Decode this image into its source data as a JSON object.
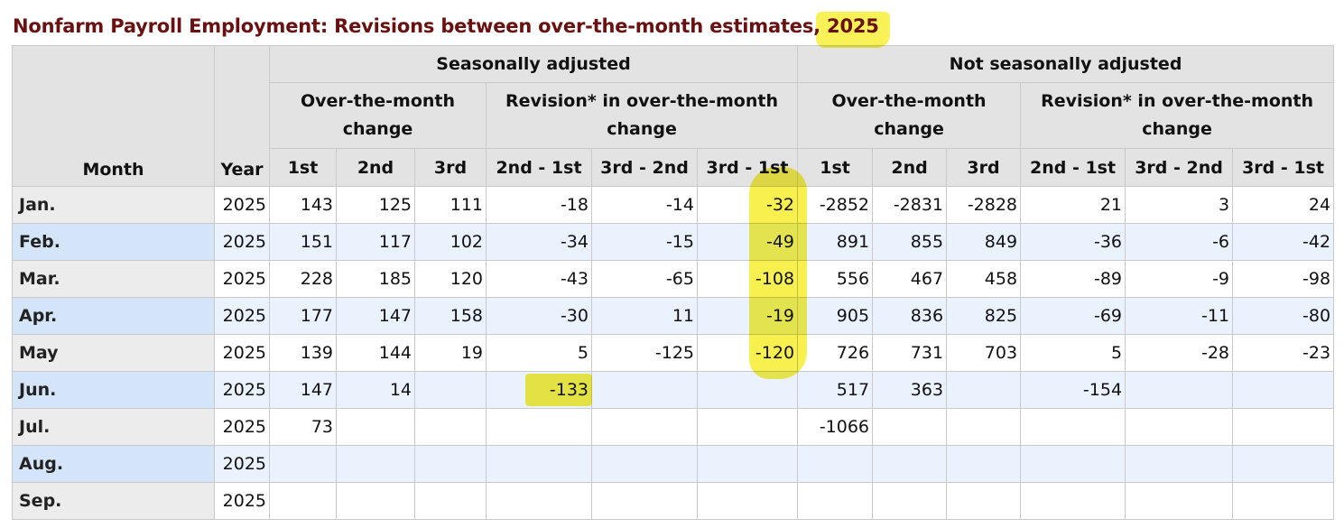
{
  "title_main": "Nonfarm Payroll Employment: Revisions between over-the-month estimates",
  "title_sep": ", ",
  "title_year": "2025",
  "headers": {
    "month": "Month",
    "year": "Year",
    "sa": "Seasonally adjusted",
    "nsa": "Not seasonally adjusted",
    "otm": "Over-the-month change",
    "rev": "Revision* in over-the-month change",
    "c1": "1st",
    "c2": "2nd",
    "c3": "3rd",
    "r21": "2nd - 1st",
    "r32": "3rd - 2nd",
    "r31": "3rd - 1st"
  },
  "highlight_color": "#f7ef3a",
  "rows": [
    {
      "month": "Jan.",
      "year": "2025",
      "sa": [
        "143",
        "125",
        "111",
        "-18",
        "-14",
        "-32"
      ],
      "nsa": [
        "-2852",
        "-2831",
        "-2828",
        "21",
        "3",
        "24"
      ]
    },
    {
      "month": "Feb.",
      "year": "2025",
      "sa": [
        "151",
        "117",
        "102",
        "-34",
        "-15",
        "-49"
      ],
      "nsa": [
        "891",
        "855",
        "849",
        "-36",
        "-6",
        "-42"
      ]
    },
    {
      "month": "Mar.",
      "year": "2025",
      "sa": [
        "228",
        "185",
        "120",
        "-43",
        "-65",
        "-108"
      ],
      "nsa": [
        "556",
        "467",
        "458",
        "-89",
        "-9",
        "-98"
      ]
    },
    {
      "month": "Apr.",
      "year": "2025",
      "sa": [
        "177",
        "147",
        "158",
        "-30",
        "11",
        "-19"
      ],
      "nsa": [
        "905",
        "836",
        "825",
        "-69",
        "-11",
        "-80"
      ]
    },
    {
      "month": "May",
      "year": "2025",
      "sa": [
        "139",
        "144",
        "19",
        "5",
        "-125",
        "-120"
      ],
      "nsa": [
        "726",
        "731",
        "703",
        "5",
        "-28",
        "-23"
      ]
    },
    {
      "month": "Jun.",
      "year": "2025",
      "sa": [
        "147",
        "14",
        "",
        "-133",
        "",
        ""
      ],
      "nsa": [
        "517",
        "363",
        "",
        "-154",
        "",
        ""
      ]
    },
    {
      "month": "Jul.",
      "year": "2025",
      "sa": [
        "73",
        "",
        "",
        "",
        "",
        ""
      ],
      "nsa": [
        "-1066",
        "",
        "",
        "",
        "",
        ""
      ]
    },
    {
      "month": "Aug.",
      "year": "2025",
      "sa": [
        "",
        "",
        "",
        "",
        "",
        ""
      ],
      "nsa": [
        "",
        "",
        "",
        "",
        "",
        ""
      ]
    },
    {
      "month": "Sep.",
      "year": "2025",
      "sa": [
        "",
        "",
        "",
        "",
        "",
        ""
      ],
      "nsa": [
        "",
        "",
        "",
        "",
        "",
        ""
      ]
    }
  ]
}
